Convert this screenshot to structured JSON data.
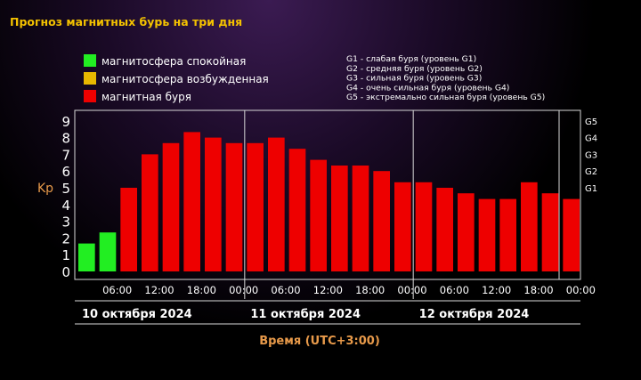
{
  "title": "Прогноз магнитных бурь на три дня",
  "legend": [
    {
      "label": "магнитосфера спокойная",
      "color": "#22ee22"
    },
    {
      "label": "магнитосфера возбужденная",
      "color": "#e8b800"
    },
    {
      "label": "магнитная буря",
      "color": "#ee0000"
    }
  ],
  "g_scale": [
    "G1 - слабая буря (уровень G1)",
    "G2 - средняя буря (уровень G2)",
    "G3 - сильная буря (уровень G3)",
    "G4 - очень сильная буря (уровень G4)",
    "G5 - экстремально сильная буря (уровень G5)"
  ],
  "chart_data": {
    "type": "bar",
    "ylabel": "Kp",
    "xlabel": "Время (UTC+3:00)",
    "ylim": [
      0,
      9
    ],
    "y_ticks": [
      "0",
      "1",
      "2",
      "3",
      "4",
      "5",
      "6",
      "7",
      "8",
      "9"
    ],
    "right_ticks": [
      {
        "label": "G1",
        "value": 5
      },
      {
        "label": "G2",
        "value": 6
      },
      {
        "label": "G3",
        "value": 7
      },
      {
        "label": "G4",
        "value": 8
      },
      {
        "label": "G5",
        "value": 9
      }
    ],
    "x_tick_labels": [
      "06:00",
      "12:00",
      "18:00",
      "00:00",
      "06:00",
      "12:00",
      "18:00",
      "00:00",
      "06:00",
      "12:00",
      "18:00",
      "00:00"
    ],
    "days": [
      "10 октября 2024",
      "11 октября 2024",
      "12 октября 2024"
    ],
    "values": [
      1.67,
      2.33,
      5.0,
      7.0,
      7.67,
      8.33,
      8.0,
      7.67,
      7.67,
      8.0,
      7.33,
      6.67,
      6.33,
      6.33,
      6.0,
      5.33,
      5.33,
      5.0,
      4.67,
      4.33,
      4.33,
      5.33,
      4.67,
      4.33
    ],
    "colors": [
      "#22ee22",
      "#22ee22",
      "#ee0000",
      "#ee0000",
      "#ee0000",
      "#ee0000",
      "#ee0000",
      "#ee0000",
      "#ee0000",
      "#ee0000",
      "#ee0000",
      "#ee0000",
      "#ee0000",
      "#ee0000",
      "#ee0000",
      "#ee0000",
      "#ee0000",
      "#ee0000",
      "#ee0000",
      "#ee0000",
      "#ee0000",
      "#ee0000",
      "#ee0000",
      "#ee0000"
    ],
    "grid": false
  }
}
